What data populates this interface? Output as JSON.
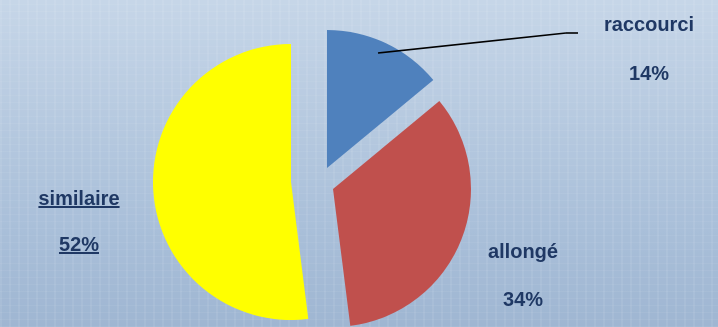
{
  "chart_data": {
    "type": "pie",
    "exploded": true,
    "slices": [
      {
        "label": "raccourci",
        "value": 14,
        "value_label": "14%",
        "color": "#4f81bd"
      },
      {
        "label": "allongé",
        "value": 34,
        "value_label": "34%",
        "color": "#c0504d"
      },
      {
        "label": "similaire",
        "value": 52,
        "value_label": "52%",
        "color": "#ffff00"
      }
    ],
    "label_color": "#1f3864",
    "legend": "none"
  }
}
